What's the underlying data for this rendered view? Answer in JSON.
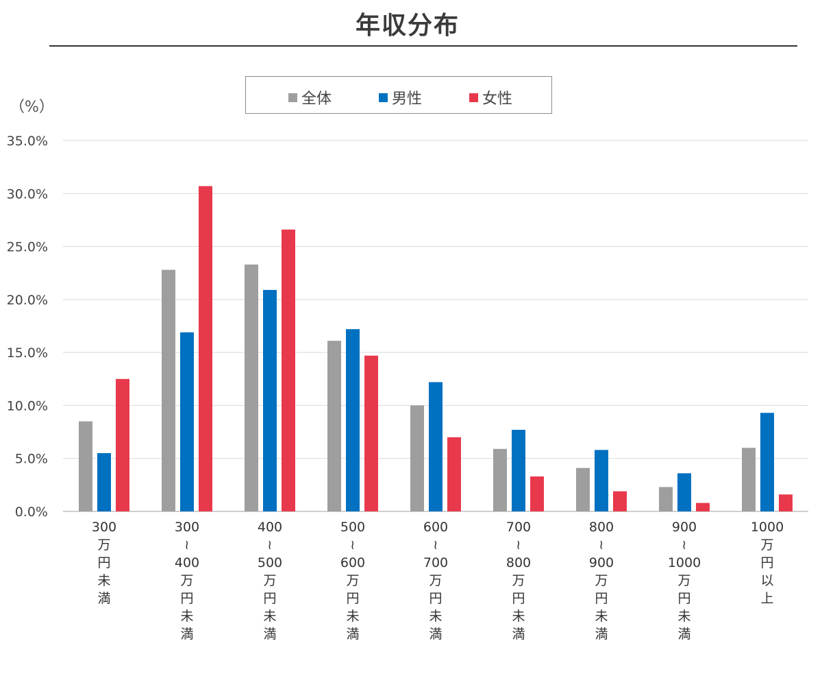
{
  "title": "年収分布",
  "y_unit": "（%）",
  "legend": [
    {
      "label": "全体",
      "color": "#9e9e9e"
    },
    {
      "label": "男性",
      "color": "#0070c0"
    },
    {
      "label": "女性",
      "color": "#e8394c"
    }
  ],
  "chart_data": {
    "type": "bar",
    "title": "年収分布",
    "ylabel": "（%）",
    "ylim": [
      0,
      35
    ],
    "yticks": [
      "0.0%",
      "5.0%",
      "10.0%",
      "15.0%",
      "20.0%",
      "25.0%",
      "30.0%",
      "35.0%"
    ],
    "grid": true,
    "legend_position": "top-center",
    "categories": [
      [
        "300",
        "万円未満"
      ],
      [
        "300",
        "~",
        "400",
        "万円未満"
      ],
      [
        "400",
        "~",
        "500",
        "万円未満"
      ],
      [
        "500",
        "~",
        "600",
        "万円未満"
      ],
      [
        "600",
        "~",
        "700",
        "万円未満"
      ],
      [
        "700",
        "~",
        "800",
        "万円未満"
      ],
      [
        "800",
        "~",
        "900",
        "万円未満"
      ],
      [
        "900",
        "~",
        "1000",
        "万円未満"
      ],
      [
        "1000",
        "万円以上"
      ]
    ],
    "series": [
      {
        "name": "全体",
        "color": "#9e9e9e",
        "values": [
          8.5,
          22.8,
          23.3,
          16.1,
          10.0,
          5.9,
          4.1,
          2.3,
          6.0
        ]
      },
      {
        "name": "男性",
        "color": "#0070c0",
        "values": [
          5.5,
          16.9,
          20.9,
          17.2,
          12.2,
          7.7,
          5.8,
          3.6,
          9.3
        ]
      },
      {
        "name": "女性",
        "color": "#e8394c",
        "values": [
          12.5,
          30.7,
          26.6,
          14.7,
          7.0,
          3.3,
          1.9,
          0.8,
          1.6
        ]
      }
    ]
  }
}
